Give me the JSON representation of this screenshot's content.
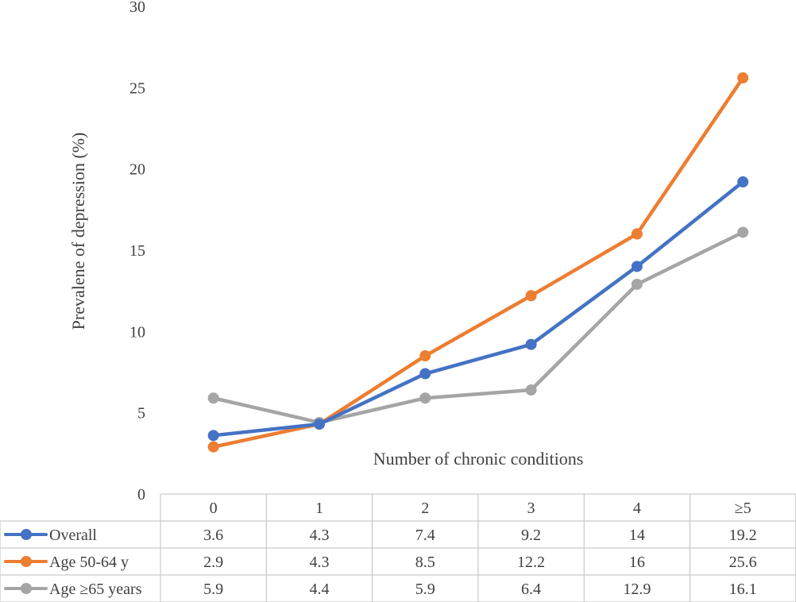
{
  "chart_data": {
    "type": "line",
    "title": "",
    "xlabel": "Number of chronic conditions",
    "ylabel": "Prevalene of depression (%)",
    "ylim": [
      0,
      30
    ],
    "yticks": [
      0,
      5,
      10,
      15,
      20,
      25,
      30
    ],
    "grid": false,
    "legend": "data table below plot",
    "categories": [
      "0",
      "1",
      "2",
      "3",
      "4",
      "≥5"
    ],
    "series": [
      {
        "name": "Overall",
        "color": "#4472C4",
        "values": [
          3.6,
          4.3,
          7.4,
          9.2,
          14,
          19.2
        ],
        "labels": [
          "3.6",
          "4.3",
          "7.4",
          "9.2",
          "14",
          "19.2"
        ]
      },
      {
        "name": "Age 50-64 y",
        "color": "#ED7D31",
        "values": [
          2.9,
          4.3,
          8.5,
          12.2,
          16,
          25.6
        ],
        "labels": [
          "2.9",
          "4.3",
          "8.5",
          "12.2",
          "16",
          "25.6"
        ]
      },
      {
        "name": "Age ≥65 years",
        "color": "#A5A5A5",
        "values": [
          5.9,
          4.4,
          5.9,
          6.4,
          12.9,
          16.1
        ],
        "labels": [
          "5.9",
          "4.4",
          "5.9",
          "6.4",
          "12.9",
          "16.1"
        ]
      }
    ]
  }
}
